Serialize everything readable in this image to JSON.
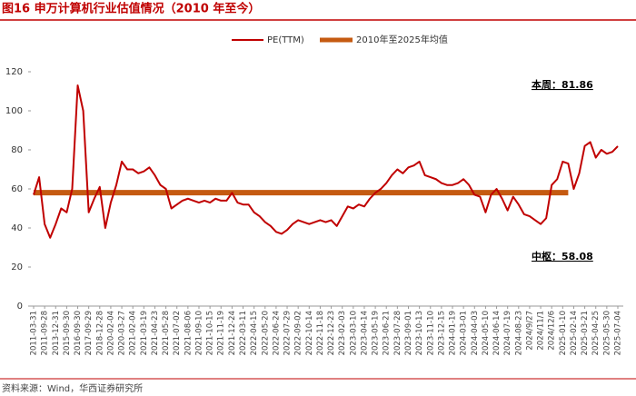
{
  "chart_data": {
    "type": "line",
    "title": "图16 申万计算机行业估值情况（2010 年至今）",
    "source": "资料来源：Wind，华西证券研究所",
    "annotations": [
      "本周：81.86",
      "中枢：58.08"
    ],
    "categories": [
      "2011-03-31",
      null,
      "2011-09-28",
      null,
      "2013-12-31",
      null,
      "2015-09-30",
      null,
      "2016-09-30",
      null,
      "2017-09-29",
      null,
      "2018-12-28",
      null,
      "2020-02-04",
      null,
      "2020-03-27",
      null,
      "2021-02-04",
      null,
      "2021-03-19",
      null,
      "2021-04-23",
      null,
      "2021-05-28",
      null,
      "2021-07-02",
      null,
      "2021-08-06",
      null,
      "2021-09-10",
      null,
      "2021-10-15",
      null,
      "2021-11-19",
      null,
      "2021-12-24",
      null,
      "2022-03-11",
      null,
      "2022-04-15",
      null,
      "2022-05-20",
      null,
      "2022-06-24",
      null,
      "2022-07-29",
      null,
      "2022-09-02",
      null,
      "2022-10-14",
      null,
      "2022-11-18",
      null,
      "2022-12-23",
      null,
      "2023-02-03",
      null,
      "2023-03-10",
      null,
      "2023-04-14",
      null,
      "2023-05-19",
      null,
      "2023-06-21",
      null,
      "2023-07-28",
      null,
      "2023-09-01",
      null,
      "2023-10-13",
      null,
      "2023-11-10",
      null,
      "2023-12-15",
      null,
      "2024-01-19",
      null,
      "2024-03-01",
      null,
      "2024-04-03",
      null,
      "2024-05-10",
      null,
      "2024-06-14",
      null,
      "2024-07-19",
      null,
      "2024-08-23",
      null,
      "2024/9/27",
      null,
      "2024/11/1",
      null,
      "2024/12/6",
      null,
      "2025-01-10",
      null,
      "2025-02-14",
      null,
      "2025-03-21",
      null,
      "2025-04-25",
      null,
      "2025-05-30",
      null,
      "2025-07-04"
    ],
    "series": [
      {
        "name": "PE(TTM)",
        "color": "#c00000",
        "width": 2,
        "values": [
          57,
          66,
          42,
          35,
          42,
          50,
          48,
          60,
          113,
          100,
          48,
          55,
          61,
          40,
          53,
          62,
          74,
          70,
          70,
          68,
          69,
          71,
          67,
          62,
          60,
          50,
          52,
          54,
          55,
          54,
          53,
          54,
          53,
          55,
          54,
          54,
          58,
          53,
          52,
          52,
          48,
          46,
          43,
          41,
          38,
          37,
          39,
          42,
          44,
          43,
          42,
          43,
          44,
          43,
          44,
          41,
          46,
          51,
          50,
          52,
          51,
          55,
          58,
          60,
          63,
          67,
          70,
          68,
          71,
          72,
          74,
          67,
          66,
          65,
          63,
          62,
          62,
          63,
          65,
          62,
          57,
          56,
          48,
          57,
          60,
          55,
          49,
          56,
          52,
          47,
          46,
          44,
          42,
          45,
          62,
          65,
          74,
          73,
          60,
          68,
          82,
          84,
          76,
          80,
          78,
          79,
          81.86
        ]
      },
      {
        "name": "2010年至2025年均值",
        "color": "#c55a11",
        "width": 6,
        "values": [
          58.08,
          58.08,
          58.08,
          58.08,
          58.08,
          58.08,
          58.08,
          58.08,
          58.08,
          58.08,
          58.08,
          58.08,
          58.08,
          58.08,
          58.08,
          58.08,
          58.08,
          58.08,
          58.08,
          58.08,
          58.08,
          58.08,
          58.08,
          58.08,
          58.08,
          58.08,
          58.08,
          58.08,
          58.08,
          58.08,
          58.08,
          58.08,
          58.08,
          58.08,
          58.08,
          58.08,
          58.08,
          58.08,
          58.08,
          58.08,
          58.08,
          58.08,
          58.08,
          58.08,
          58.08,
          58.08,
          58.08,
          58.08,
          58.08,
          58.08,
          58.08,
          58.08,
          58.08,
          58.08,
          58.08,
          58.08,
          58.08,
          58.08,
          58.08,
          58.08,
          58.08,
          58.08,
          58.08,
          58.08,
          58.08,
          58.08,
          58.08,
          58.08,
          58.08,
          58.08,
          58.08,
          58.08,
          58.08,
          58.08,
          58.08,
          58.08,
          58.08,
          58.08,
          58.08,
          58.08,
          58.08,
          58.08,
          58.08,
          58.08,
          58.08,
          58.08,
          58.08,
          58.08,
          58.08,
          58.08,
          58.08,
          58.08,
          58.08,
          58.08,
          58.08,
          58.08,
          58.08,
          58.08,
          null,
          null,
          null,
          null,
          null,
          null,
          null,
          null,
          null
        ]
      }
    ],
    "ylim": [
      0,
      120
    ],
    "yticks": [
      0,
      20,
      40,
      60,
      80,
      100,
      120
    ],
    "grid": false,
    "legend": "top"
  }
}
